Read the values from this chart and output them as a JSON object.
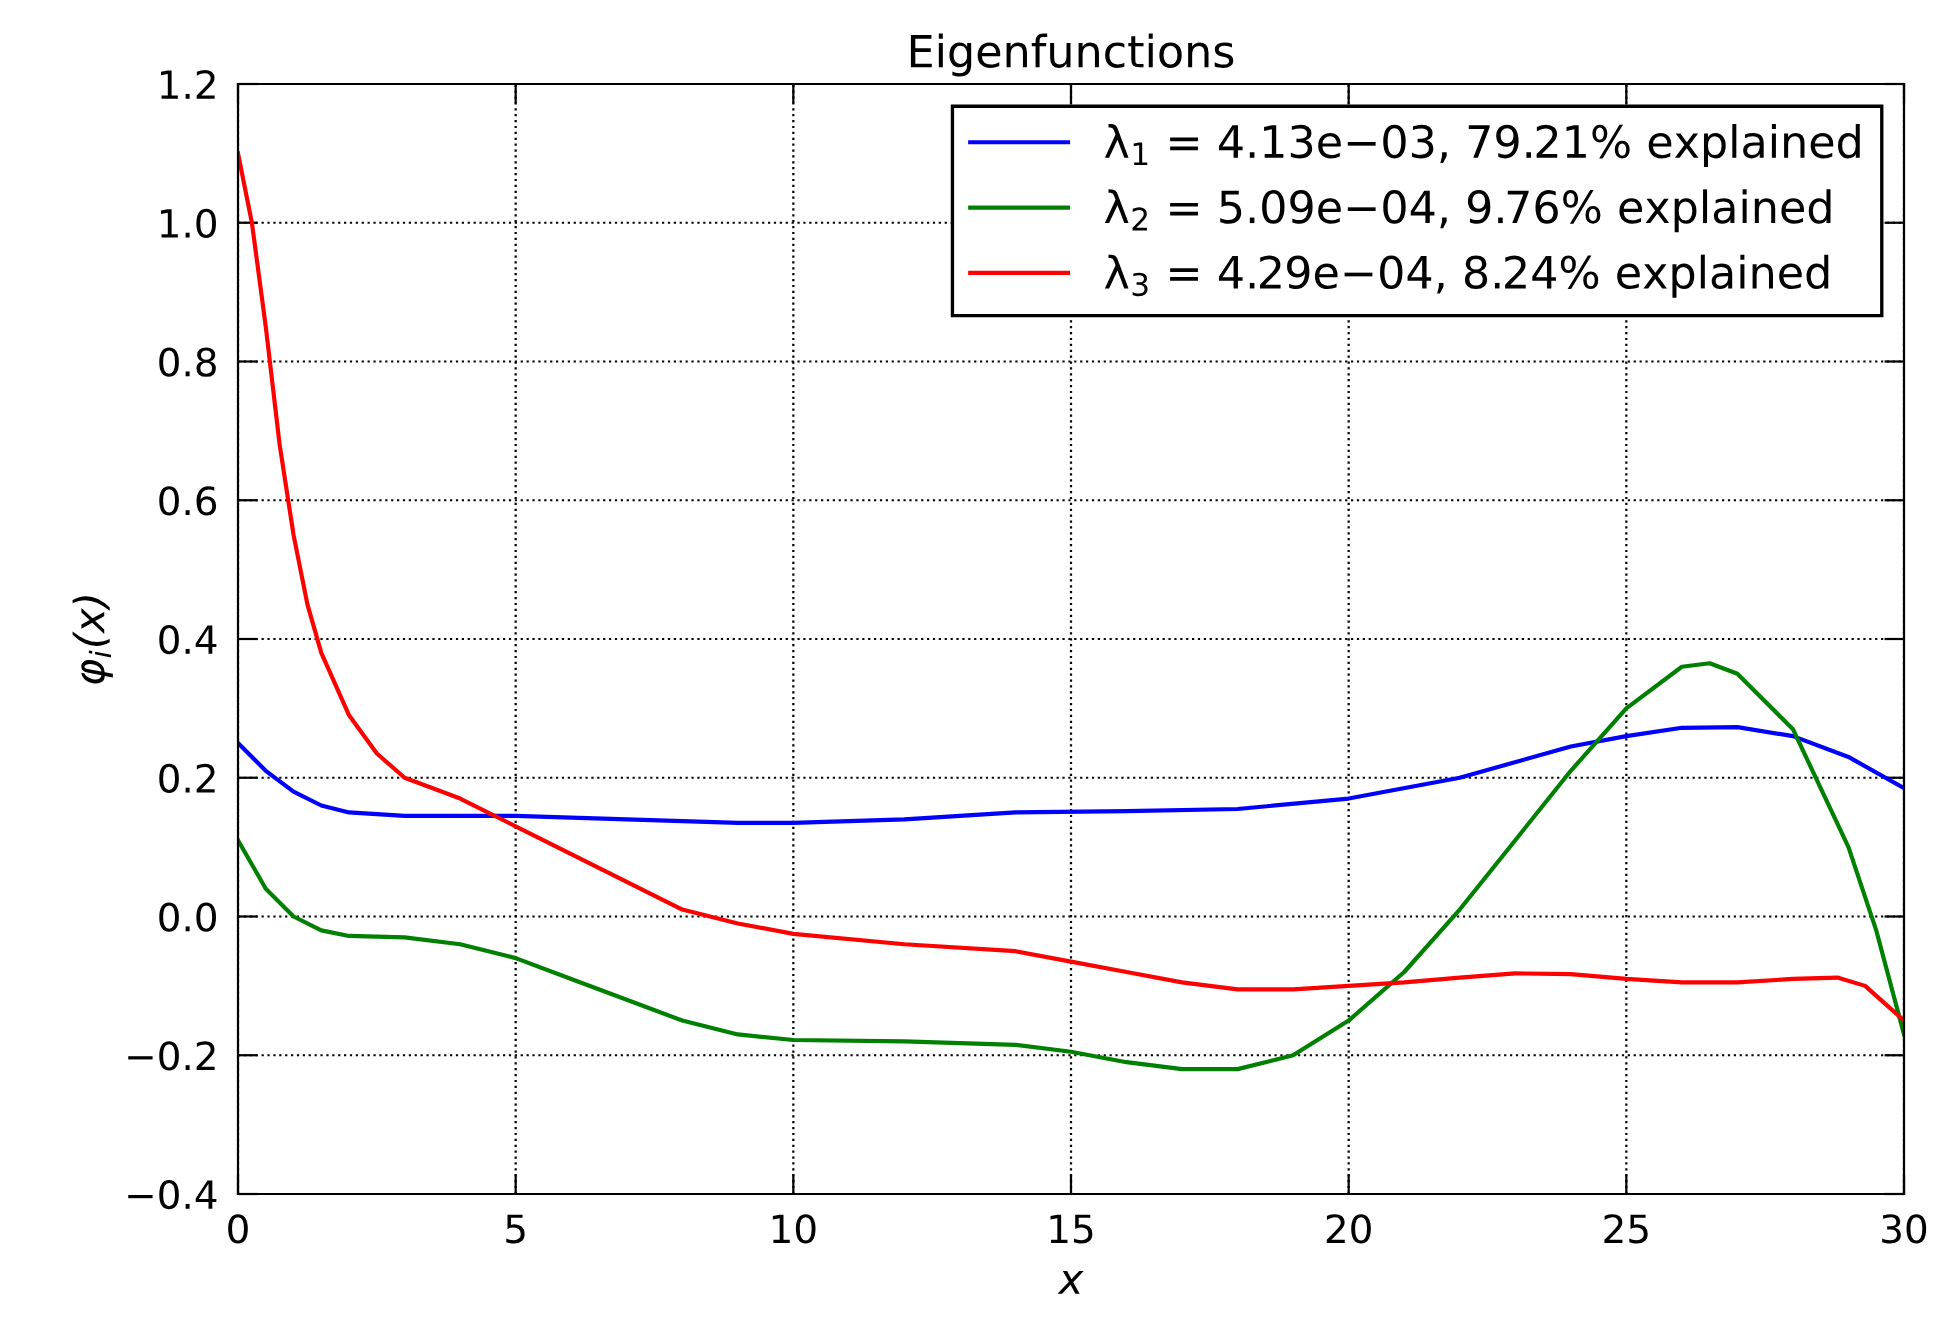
{
  "chart_data": {
    "type": "line",
    "title": "Eigenfunctions",
    "xlabel": "x",
    "ylabel": "φ$_{i}$(x)",
    "xlim": [
      0,
      30
    ],
    "xticks": [
      0,
      5,
      10,
      15,
      20,
      25,
      30
    ],
    "ylim": [
      -0.4,
      1.2
    ],
    "yticks": [
      {
        "value": -0.4,
        "label": "−0.4"
      },
      {
        "value": -0.2,
        "label": "−0.2"
      },
      {
        "value": 0,
        "label": "0.0"
      },
      {
        "value": 0.2,
        "label": "0.2"
      },
      {
        "value": 0.4,
        "label": "0.4"
      },
      {
        "value": 0.6,
        "label": "0.6"
      },
      {
        "value": 0.8,
        "label": "0.8"
      },
      {
        "value": 1.0,
        "label": "1.0"
      },
      {
        "value": 1.2,
        "label": "1.2"
      }
    ],
    "grid": true,
    "legend": "top right",
    "line_style": "solid",
    "marker": "none",
    "series": [
      {
        "name": "λ$_{1}$ = 4.13e−03, 79.21% explained",
        "color": "#0000ff",
        "x": [
          0,
          0.5,
          1,
          1.5,
          2,
          3,
          5,
          7,
          9,
          10,
          12,
          14,
          16,
          18,
          20,
          22,
          24,
          25,
          26,
          27,
          28,
          29,
          30
        ],
        "values": [
          0.25,
          0.21,
          0.18,
          0.16,
          0.15,
          0.145,
          0.145,
          0.14,
          0.135,
          0.135,
          0.14,
          0.15,
          0.152,
          0.155,
          0.17,
          0.2,
          0.245,
          0.26,
          0.272,
          0.273,
          0.26,
          0.23,
          0.185
        ]
      },
      {
        "name": "λ$_{2}$ = 5.09e−04, 9.76% explained",
        "color": "#008000",
        "x": [
          0,
          0.5,
          1,
          1.5,
          2,
          3,
          4,
          5,
          6,
          7,
          8,
          9,
          10,
          12,
          14,
          15,
          16,
          17,
          18,
          19,
          20,
          21,
          22,
          23,
          24,
          25,
          26,
          26.5,
          27,
          28,
          29,
          29.5,
          30
        ],
        "values": [
          0.11,
          0.04,
          0.0,
          -0.02,
          -0.028,
          -0.03,
          -0.04,
          -0.06,
          -0.09,
          -0.12,
          -0.15,
          -0.17,
          -0.178,
          -0.18,
          -0.185,
          -0.195,
          -0.21,
          -0.22,
          -0.22,
          -0.2,
          -0.15,
          -0.08,
          0.01,
          0.11,
          0.21,
          0.3,
          0.36,
          0.365,
          0.35,
          0.27,
          0.1,
          -0.02,
          -0.17
        ]
      },
      {
        "name": "λ$_{3}$ = 4.29e−04, 8.24% explained",
        "color": "#ff0000",
        "x": [
          0,
          0.25,
          0.5,
          0.75,
          1,
          1.25,
          1.5,
          2,
          2.5,
          3,
          4,
          5,
          6,
          7,
          8,
          9,
          10,
          12,
          14,
          15,
          16,
          17,
          18,
          19,
          20,
          21,
          22,
          23,
          24,
          25,
          26,
          27,
          28,
          28.8,
          29.3,
          30
        ],
        "values": [
          1.1,
          1.0,
          0.85,
          0.68,
          0.55,
          0.45,
          0.38,
          0.29,
          0.235,
          0.2,
          0.17,
          0.13,
          0.09,
          0.05,
          0.01,
          -0.01,
          -0.025,
          -0.04,
          -0.05,
          -0.065,
          -0.08,
          -0.095,
          -0.105,
          -0.105,
          -0.1,
          -0.095,
          -0.088,
          -0.082,
          -0.083,
          -0.09,
          -0.095,
          -0.095,
          -0.09,
          -0.088,
          -0.1,
          -0.15
        ]
      }
    ]
  }
}
